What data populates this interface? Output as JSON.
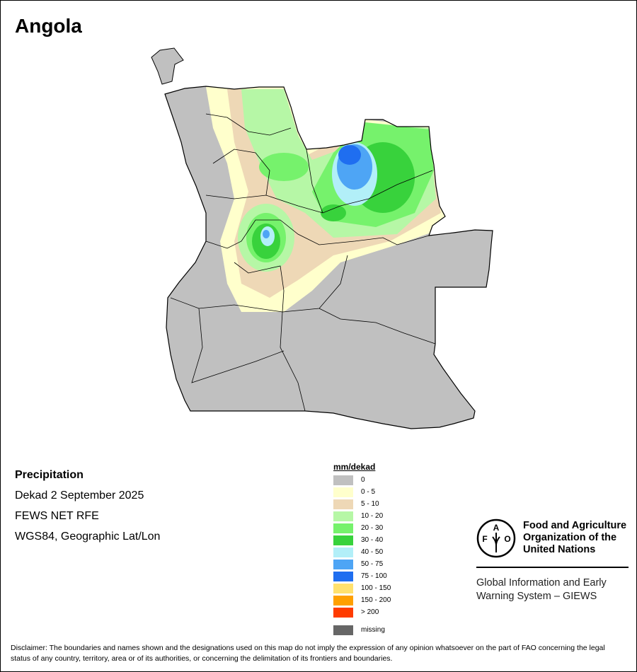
{
  "title": "Angola",
  "info": {
    "heading": "Precipitation",
    "period": "Dekad 2 September 2025",
    "source": "FEWS NET RFE",
    "projection": "WGS84, Geographic Lat/Lon"
  },
  "legend": {
    "title": "mm/dekad",
    "items": [
      {
        "label": "0",
        "color": "#c0c0c0"
      },
      {
        "label": "0 - 5",
        "color": "#ffffcc"
      },
      {
        "label": "5 - 10",
        "color": "#eed8b6"
      },
      {
        "label": "10 - 20",
        "color": "#b6f7a6"
      },
      {
        "label": "20 - 30",
        "color": "#76f26c"
      },
      {
        "label": "30 - 40",
        "color": "#38d23c"
      },
      {
        "label": "40 - 50",
        "color": "#b2eff8"
      },
      {
        "label": "50 - 75",
        "color": "#4ea5f5"
      },
      {
        "label": "75 - 100",
        "color": "#1f6ef0"
      },
      {
        "label": "100 - 150",
        "color": "#ffe16e"
      },
      {
        "label": "150 - 200",
        "color": "#ffa000"
      },
      {
        "label": "> 200",
        "color": "#ff3c00"
      }
    ],
    "missing": {
      "label": "missing",
      "color": "#666666"
    }
  },
  "logo": {
    "org_name": "Food and Agriculture Organization of the United Nations",
    "logo_text": "FAO FIAT PANIS",
    "system": "Global Information and Early Warning System – GIEWS"
  },
  "disclaimer": "Disclaimer: The boundaries and names shown and the designations used on this map do not imply the expression of any opinion whatsoever on the part of FAO concerning the legal status of any country, territory, area or of its authorities, or concerning the delimitation of its frontiers and boundaries."
}
